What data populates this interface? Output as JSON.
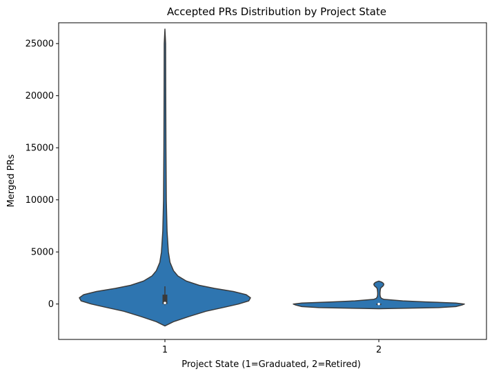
{
  "chart_data": {
    "type": "violin",
    "title": "Accepted PRs Distribution by Project State",
    "xlabel": "Project State (1=Graduated, 2=Retired)",
    "ylabel": "Merged PRs",
    "categories": [
      "1",
      "2"
    ],
    "ylim": [
      -3400,
      27000
    ],
    "yticks": [
      0,
      5000,
      10000,
      15000,
      20000,
      25000
    ],
    "grid": false,
    "legend": "none",
    "color": "#2e75b0",
    "edge_color": "#3a3a3a",
    "violins": [
      {
        "category": "1",
        "min": -2100,
        "max": 26400,
        "q1": 0,
        "median": 100,
        "q3": 900,
        "whisker_low": -100,
        "whisker_high": 1700,
        "density": [
          [
            -2100,
            0.0
          ],
          [
            -1700,
            0.1
          ],
          [
            -1200,
            0.28
          ],
          [
            -700,
            0.48
          ],
          [
            -300,
            0.7
          ],
          [
            0,
            0.86
          ],
          [
            300,
            0.98
          ],
          [
            600,
            1.0
          ],
          [
            900,
            0.95
          ],
          [
            1200,
            0.8
          ],
          [
            1500,
            0.58
          ],
          [
            1800,
            0.4
          ],
          [
            2200,
            0.25
          ],
          [
            2700,
            0.15
          ],
          [
            3200,
            0.1
          ],
          [
            4000,
            0.06
          ],
          [
            5000,
            0.04
          ],
          [
            7000,
            0.025
          ],
          [
            10000,
            0.016
          ],
          [
            15000,
            0.012
          ],
          [
            20000,
            0.01
          ],
          [
            25000,
            0.008
          ],
          [
            26400,
            0.0
          ]
        ]
      },
      {
        "category": "2",
        "min": -450,
        "max": 2200,
        "q1": -30,
        "median": 0,
        "q3": 40,
        "whisker_low": -60,
        "whisker_high": 60,
        "density": [
          [
            -450,
            0.0
          ],
          [
            -350,
            0.7
          ],
          [
            -250,
            0.9
          ],
          [
            -100,
            0.97
          ],
          [
            0,
            1.0
          ],
          [
            100,
            0.9
          ],
          [
            200,
            0.55
          ],
          [
            300,
            0.28
          ],
          [
            450,
            0.06
          ],
          [
            550,
            0.03
          ],
          [
            700,
            0.018
          ],
          [
            900,
            0.014
          ],
          [
            1100,
            0.014
          ],
          [
            1300,
            0.016
          ],
          [
            1500,
            0.02
          ],
          [
            1600,
            0.03
          ],
          [
            1700,
            0.045
          ],
          [
            1800,
            0.055
          ],
          [
            1900,
            0.058
          ],
          [
            2000,
            0.052
          ],
          [
            2100,
            0.035
          ],
          [
            2200,
            0.0
          ]
        ]
      }
    ]
  }
}
